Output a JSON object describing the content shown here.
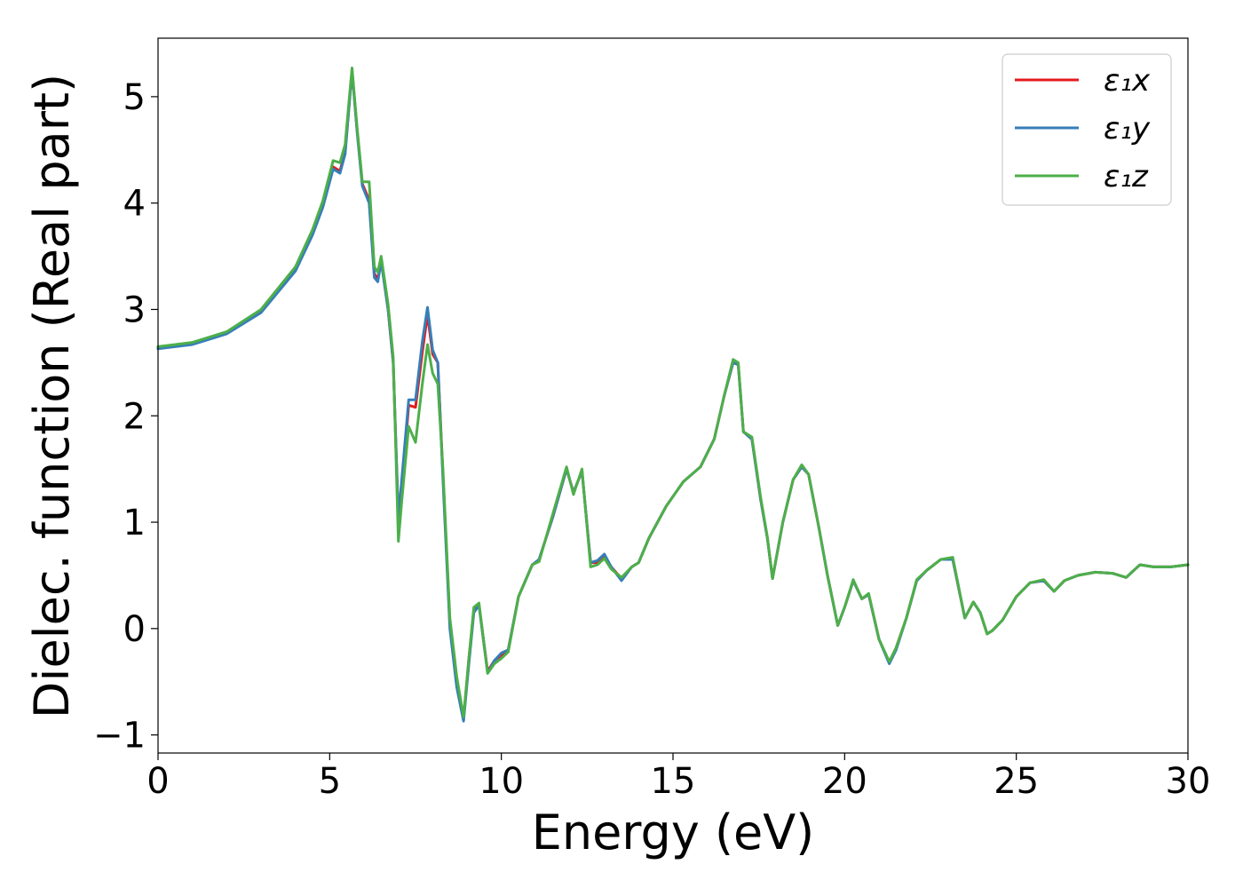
{
  "chart_data": {
    "type": "line",
    "title": "",
    "xlabel": "Energy (eV)",
    "ylabel": "Dielec. function (Real part)",
    "xlim": [
      0,
      30
    ],
    "ylim": [
      -1.17,
      5.55
    ],
    "xticks": [
      0,
      5,
      10,
      15,
      20,
      25,
      30
    ],
    "xtick_labels": [
      "0",
      "5",
      "10",
      "15",
      "20",
      "25",
      "30"
    ],
    "yticks": [
      -1,
      0,
      1,
      2,
      3,
      4,
      5
    ],
    "ytick_labels": [
      "−1",
      "0",
      "1",
      "2",
      "3",
      "4",
      "5"
    ],
    "grid": false,
    "legend_position": "top-right",
    "series": [
      {
        "name": "ε₁x",
        "color": "#e41a1c",
        "x": [
          0,
          1,
          2,
          3,
          4,
          4.5,
          4.8,
          5.1,
          5.3,
          5.45,
          5.65,
          5.8,
          5.95,
          6.15,
          6.3,
          6.4,
          6.5,
          6.7,
          6.85,
          7.0,
          7.1,
          7.3,
          7.5,
          7.7,
          7.85,
          8.0,
          8.15,
          8.3,
          8.5,
          8.7,
          8.9,
          9.05,
          9.2,
          9.35,
          9.6,
          9.8,
          10.0,
          10.2,
          10.5,
          10.9,
          11.1,
          11.5,
          11.9,
          12.1,
          12.35,
          12.6,
          12.8,
          13.0,
          13.2,
          13.5,
          13.8,
          14.0,
          14.3,
          14.8,
          15.3,
          15.8,
          16.2,
          16.5,
          16.75,
          16.9,
          17.05,
          17.3,
          17.55,
          17.75,
          17.9,
          18.2,
          18.5,
          18.75,
          18.95,
          19.25,
          19.5,
          19.8,
          20.0,
          20.25,
          20.5,
          20.7,
          21.0,
          21.3,
          21.5,
          21.8,
          22.1,
          22.4,
          22.6,
          22.8,
          23.15,
          23.5,
          23.75,
          23.95,
          24.15,
          24.3,
          24.6,
          25.0,
          25.4,
          25.8,
          26.1,
          26.4,
          26.8,
          27.3,
          27.8,
          28.2,
          28.6,
          29.0,
          29.5,
          30
        ],
        "y": [
          2.64,
          2.68,
          2.78,
          2.98,
          3.38,
          3.72,
          3.98,
          4.34,
          4.3,
          4.48,
          5.25,
          4.68,
          4.18,
          4.03,
          3.34,
          3.28,
          3.48,
          3.0,
          2.5,
          1.0,
          1.3,
          2.1,
          2.08,
          2.6,
          2.95,
          2.58,
          2.5,
          1.45,
          0.05,
          -0.5,
          -0.85,
          -0.3,
          0.18,
          0.22,
          -0.4,
          -0.3,
          -0.25,
          -0.2,
          0.3,
          0.6,
          0.65,
          1.05,
          1.5,
          1.28,
          1.48,
          0.62,
          0.62,
          0.68,
          0.58,
          0.47,
          0.58,
          0.62,
          0.85,
          1.15,
          1.38,
          1.52,
          1.78,
          2.2,
          2.5,
          2.48,
          1.85,
          1.78,
          1.22,
          0.85,
          0.47,
          1.0,
          1.4,
          1.52,
          1.45,
          0.95,
          0.5,
          0.03,
          0.2,
          0.45,
          0.28,
          0.32,
          -0.1,
          -0.32,
          -0.18,
          0.1,
          0.45,
          0.55,
          0.6,
          0.65,
          0.65,
          0.1,
          0.25,
          0.15,
          -0.05,
          -0.02,
          0.08,
          0.3,
          0.43,
          0.45,
          0.35,
          0.45,
          0.5,
          0.53,
          0.52,
          0.48,
          0.6,
          0.58,
          0.58,
          0.6
        ]
      },
      {
        "name": "ε₁y",
        "color": "#377eb8",
        "x": [
          0,
          1,
          2,
          3,
          4,
          4.5,
          4.8,
          5.1,
          5.3,
          5.45,
          5.65,
          5.8,
          5.95,
          6.15,
          6.3,
          6.4,
          6.5,
          6.7,
          6.85,
          7.0,
          7.1,
          7.3,
          7.5,
          7.7,
          7.85,
          8.0,
          8.15,
          8.3,
          8.5,
          8.7,
          8.9,
          9.05,
          9.2,
          9.35,
          9.6,
          9.8,
          10.0,
          10.2,
          10.5,
          10.9,
          11.1,
          11.5,
          11.9,
          12.1,
          12.35,
          12.6,
          12.8,
          13.0,
          13.2,
          13.5,
          13.8,
          14.0,
          14.3,
          14.8,
          15.3,
          15.8,
          16.2,
          16.5,
          16.75,
          16.9,
          17.05,
          17.3,
          17.55,
          17.75,
          17.9,
          18.2,
          18.5,
          18.75,
          18.95,
          19.25,
          19.5,
          19.8,
          20.0,
          20.25,
          20.5,
          20.7,
          21.0,
          21.3,
          21.5,
          21.8,
          22.1,
          22.4,
          22.6,
          22.8,
          23.15,
          23.5,
          23.75,
          23.95,
          24.15,
          24.3,
          24.6,
          25.0,
          25.4,
          25.8,
          26.1,
          26.4,
          26.8,
          27.3,
          27.8,
          28.2,
          28.6,
          29.0,
          29.5,
          30
        ],
        "y": [
          2.63,
          2.67,
          2.77,
          2.97,
          3.36,
          3.7,
          3.96,
          4.32,
          4.28,
          4.46,
          5.24,
          4.66,
          4.16,
          4.0,
          3.3,
          3.26,
          3.45,
          3.0,
          2.5,
          1.05,
          1.4,
          2.15,
          2.15,
          2.7,
          3.02,
          2.62,
          2.5,
          1.4,
          0.0,
          -0.55,
          -0.87,
          -0.35,
          0.15,
          0.22,
          -0.42,
          -0.3,
          -0.23,
          -0.2,
          0.3,
          0.6,
          0.65,
          1.05,
          1.5,
          1.28,
          1.48,
          0.62,
          0.64,
          0.7,
          0.58,
          0.45,
          0.58,
          0.62,
          0.85,
          1.15,
          1.38,
          1.52,
          1.78,
          2.2,
          2.5,
          2.48,
          1.85,
          1.78,
          1.22,
          0.85,
          0.47,
          1.0,
          1.4,
          1.52,
          1.45,
          0.95,
          0.5,
          0.03,
          0.2,
          0.45,
          0.28,
          0.32,
          -0.1,
          -0.33,
          -0.2,
          0.1,
          0.45,
          0.55,
          0.6,
          0.65,
          0.65,
          0.1,
          0.25,
          0.15,
          -0.05,
          -0.02,
          0.08,
          0.3,
          0.43,
          0.45,
          0.35,
          0.45,
          0.5,
          0.53,
          0.52,
          0.48,
          0.6,
          0.58,
          0.58,
          0.6
        ]
      },
      {
        "name": "ε₁z",
        "color": "#4daf4a",
        "x": [
          0,
          1,
          2,
          3,
          4,
          4.5,
          4.8,
          5.1,
          5.3,
          5.45,
          5.65,
          5.8,
          5.95,
          6.15,
          6.3,
          6.4,
          6.5,
          6.7,
          6.85,
          7.0,
          7.1,
          7.3,
          7.5,
          7.7,
          7.85,
          8.0,
          8.15,
          8.3,
          8.5,
          8.7,
          8.9,
          9.05,
          9.2,
          9.35,
          9.6,
          9.8,
          10.0,
          10.2,
          10.5,
          10.9,
          11.1,
          11.5,
          11.9,
          12.1,
          12.35,
          12.6,
          12.8,
          13.0,
          13.2,
          13.5,
          13.8,
          14.0,
          14.3,
          14.8,
          15.3,
          15.8,
          16.2,
          16.5,
          16.75,
          16.9,
          17.05,
          17.3,
          17.55,
          17.75,
          17.9,
          18.2,
          18.5,
          18.75,
          18.95,
          19.25,
          19.5,
          19.8,
          20.0,
          20.25,
          20.5,
          20.7,
          21.0,
          21.3,
          21.5,
          21.8,
          22.1,
          22.4,
          22.6,
          22.8,
          23.15,
          23.5,
          23.75,
          23.95,
          24.15,
          24.3,
          24.6,
          25.0,
          25.4,
          25.8,
          26.1,
          26.4,
          26.8,
          27.3,
          27.8,
          28.2,
          28.6,
          29.0,
          29.5,
          30
        ],
        "y": [
          2.65,
          2.69,
          2.79,
          3.0,
          3.4,
          3.75,
          4.02,
          4.4,
          4.38,
          4.55,
          5.27,
          4.7,
          4.2,
          4.2,
          3.4,
          3.35,
          3.5,
          3.05,
          2.55,
          0.82,
          1.2,
          1.9,
          1.75,
          2.3,
          2.67,
          2.4,
          2.3,
          1.5,
          0.1,
          -0.45,
          -0.83,
          -0.3,
          0.2,
          0.24,
          -0.42,
          -0.33,
          -0.28,
          -0.22,
          0.3,
          0.6,
          0.63,
          1.08,
          1.52,
          1.26,
          1.5,
          0.58,
          0.6,
          0.66,
          0.56,
          0.48,
          0.58,
          0.62,
          0.85,
          1.15,
          1.38,
          1.52,
          1.78,
          2.2,
          2.53,
          2.5,
          1.85,
          1.8,
          1.24,
          0.86,
          0.47,
          1.0,
          1.4,
          1.54,
          1.45,
          0.95,
          0.5,
          0.03,
          0.2,
          0.46,
          0.28,
          0.33,
          -0.1,
          -0.31,
          -0.18,
          0.1,
          0.46,
          0.55,
          0.6,
          0.65,
          0.67,
          0.1,
          0.25,
          0.15,
          -0.05,
          -0.02,
          0.08,
          0.3,
          0.43,
          0.46,
          0.35,
          0.45,
          0.5,
          0.53,
          0.52,
          0.48,
          0.6,
          0.58,
          0.58,
          0.6
        ]
      }
    ]
  }
}
